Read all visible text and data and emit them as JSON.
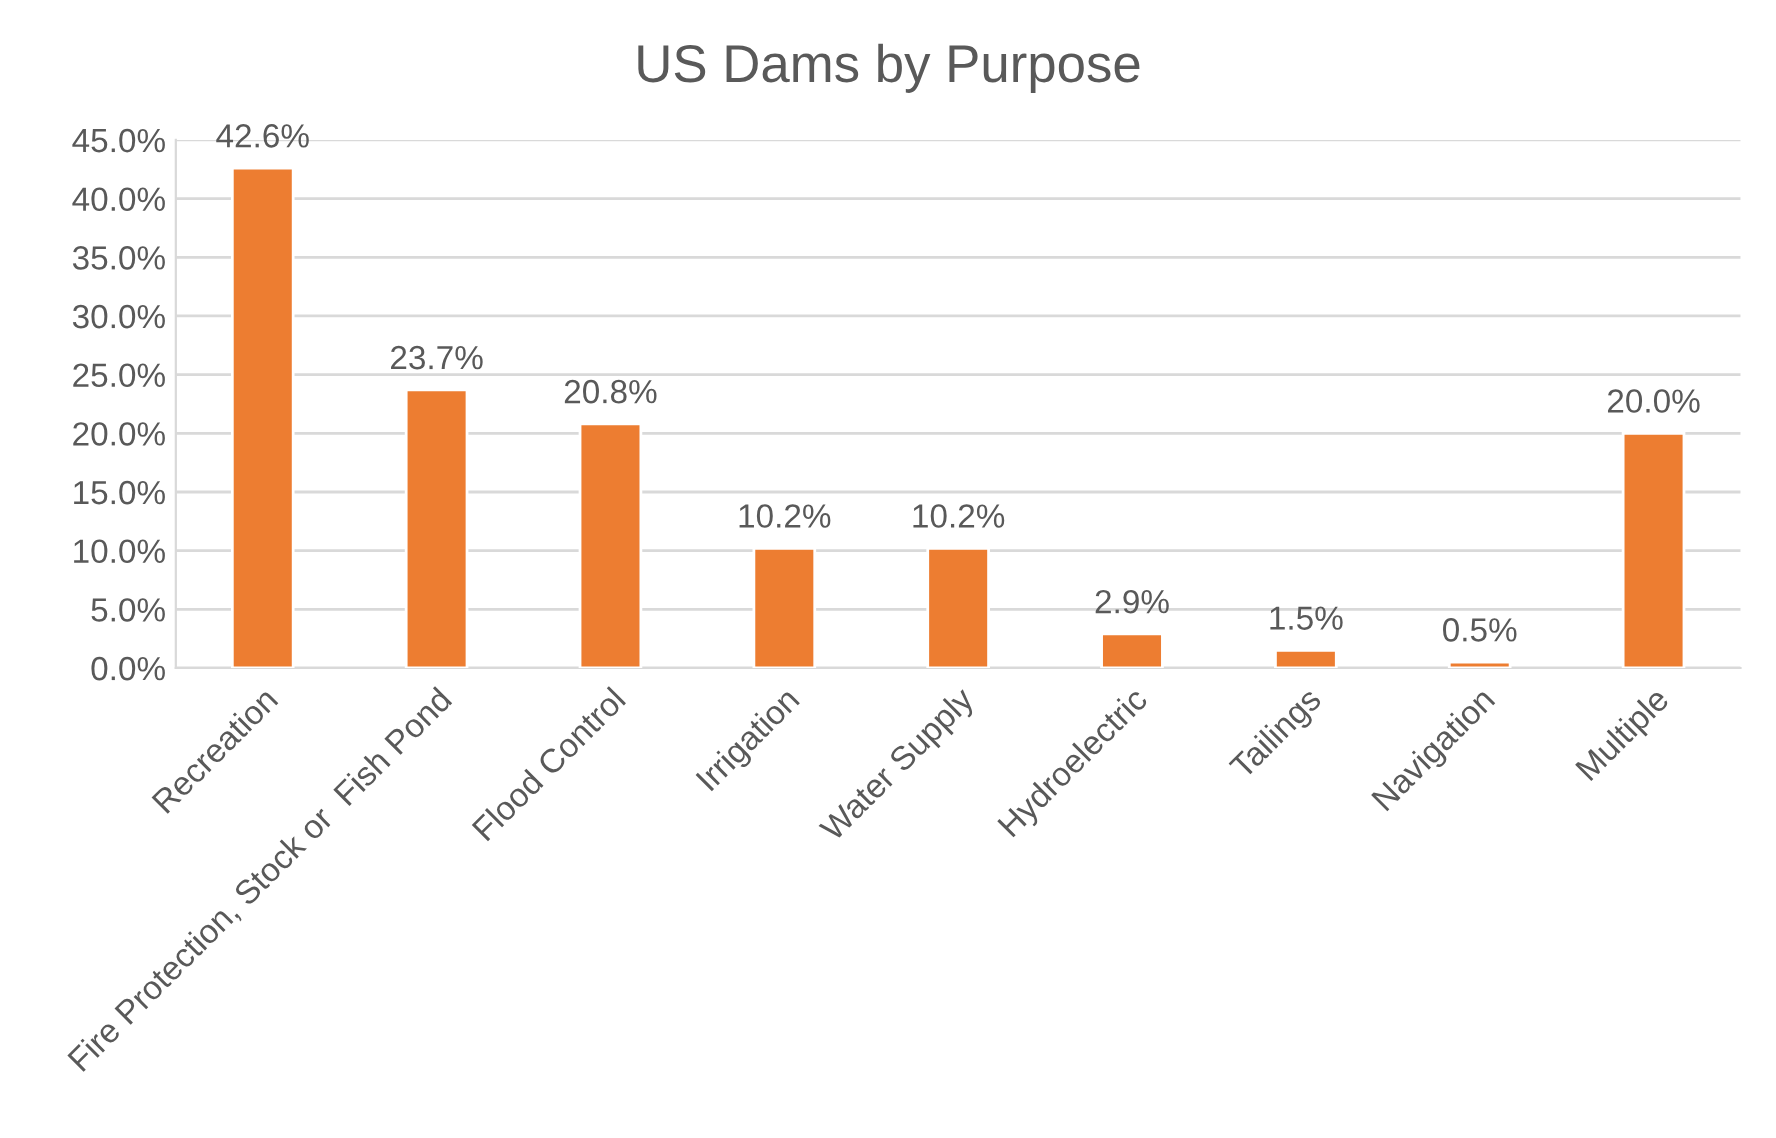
{
  "chart_data": {
    "type": "bar",
    "title": "US Dams by Purpose",
    "categories": [
      "Recreation",
      "Fire Protection, Stock or  Fish Pond",
      "Flood Control",
      "Irrigation",
      "Water Supply",
      "Hydroelectric",
      "Tailings",
      "Navigation",
      "Multiple"
    ],
    "values": [
      42.6,
      23.7,
      20.8,
      10.2,
      10.2,
      2.9,
      1.5,
      0.5,
      20.0
    ],
    "value_labels": [
      "42.6%",
      "23.7%",
      "20.8%",
      "10.2%",
      "10.2%",
      "2.9%",
      "1.5%",
      "0.5%",
      "20.0%"
    ],
    "color": "#ed7d31",
    "ylim": [
      0,
      45
    ],
    "yticks": [
      {
        "value": 0,
        "label": "0.0%"
      },
      {
        "value": 5,
        "label": "5.0%"
      },
      {
        "value": 10,
        "label": "10.0%"
      },
      {
        "value": 15,
        "label": "15.0%"
      },
      {
        "value": 20,
        "label": "20.0%"
      },
      {
        "value": 25,
        "label": "25.0%"
      },
      {
        "value": 30,
        "label": "30.0%"
      },
      {
        "value": 35,
        "label": "35.0%"
      },
      {
        "value": 40,
        "label": "40.0%"
      },
      {
        "value": 45,
        "label": "45.0%"
      }
    ],
    "grid": "y",
    "legend": false
  }
}
